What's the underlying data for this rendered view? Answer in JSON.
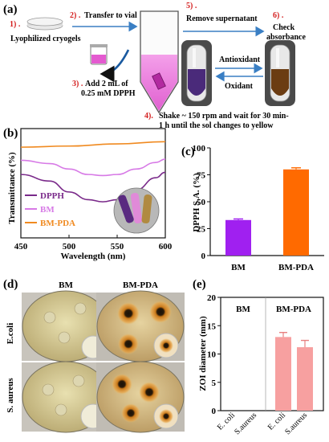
{
  "panel_a": {
    "label": "(a)",
    "steps": [
      {
        "num": "1) .",
        "text": "Lyophilized cryogels"
      },
      {
        "num": "2) .",
        "text": "Transfer to vial"
      },
      {
        "num": "3) .",
        "text_line1": "Add 2 mL of",
        "text_line2": "0.25 mM DPPH"
      },
      {
        "num": "4).",
        "text_line1": "Shake ~ 150 rpm and wait for 30 min-",
        "text_line2": "1 h until the sol changes to yellow"
      },
      {
        "num": "5) .",
        "text": "Remove supernatant"
      },
      {
        "num": "6) .",
        "text_line1": "Check",
        "text_line2": "absorbance"
      }
    ],
    "antioxidant": "Antioxidant",
    "oxidant": "Oxidant",
    "colors": {
      "arrow": "#3a7fc4",
      "number": "#d42020",
      "dpph_purple": "#5a2a80",
      "reduced_brown": "#6a3a10",
      "pink_solution": "#f07adf"
    }
  },
  "panel_b": {
    "label": "(b)",
    "chart_data": {
      "type": "line",
      "ylabel": "Transmittance (%)",
      "xlabel": "Wavelength (nm)",
      "xlim": [
        450,
        600
      ],
      "x_ticks": [
        "450",
        "500",
        "550",
        "600"
      ],
      "series": [
        {
          "name": "DPPH",
          "color": "#7a2a8a",
          "x": [
            450,
            480,
            500,
            520,
            535,
            550,
            570,
            590,
            600
          ],
          "y": [
            0.58,
            0.52,
            0.42,
            0.35,
            0.33,
            0.35,
            0.44,
            0.55,
            0.6
          ]
        },
        {
          "name": "BM",
          "color": "#d77ae6",
          "x": [
            450,
            480,
            500,
            520,
            535,
            550,
            570,
            590,
            600
          ],
          "y": [
            0.71,
            0.68,
            0.63,
            0.58,
            0.57,
            0.58,
            0.63,
            0.69,
            0.72
          ]
        },
        {
          "name": "BM-PDA",
          "color": "#f08a20",
          "x": [
            450,
            500,
            550,
            600
          ],
          "y": [
            0.83,
            0.84,
            0.86,
            0.88
          ]
        }
      ]
    }
  },
  "panel_c": {
    "label": "(c)",
    "chart_data": {
      "type": "bar",
      "categories": [
        "BM",
        "BM-PDA"
      ],
      "values": [
        33,
        80
      ],
      "errors": [
        1,
        1.5
      ],
      "colors": [
        "#a020f0",
        "#ff6a00"
      ],
      "ylabel": "DPPH S.A. (%)",
      "ylim": [
        0,
        100
      ],
      "y_ticks": [
        "0",
        "25",
        "50",
        "75",
        "100"
      ]
    }
  },
  "panel_d": {
    "label": "(d)",
    "columns": [
      "BM",
      "BM-PDA"
    ],
    "rows": [
      "E.coli",
      "S. aureus"
    ]
  },
  "panel_e": {
    "label": "(e)",
    "chart_data": {
      "type": "bar",
      "groups": [
        "BM",
        "BM-PDA"
      ],
      "categories": [
        "E. coli",
        "S.aureus",
        "E. coli",
        "S.aureus"
      ],
      "values": [
        0,
        0,
        13,
        11.2
      ],
      "errors": [
        0,
        0,
        0.8,
        1.2
      ],
      "color": "#f7a0a0",
      "ylabel": "ZOI diameter (mm)",
      "ylim": [
        0,
        20
      ],
      "y_ticks": [
        "0",
        "5",
        "10",
        "15",
        "20"
      ]
    }
  }
}
